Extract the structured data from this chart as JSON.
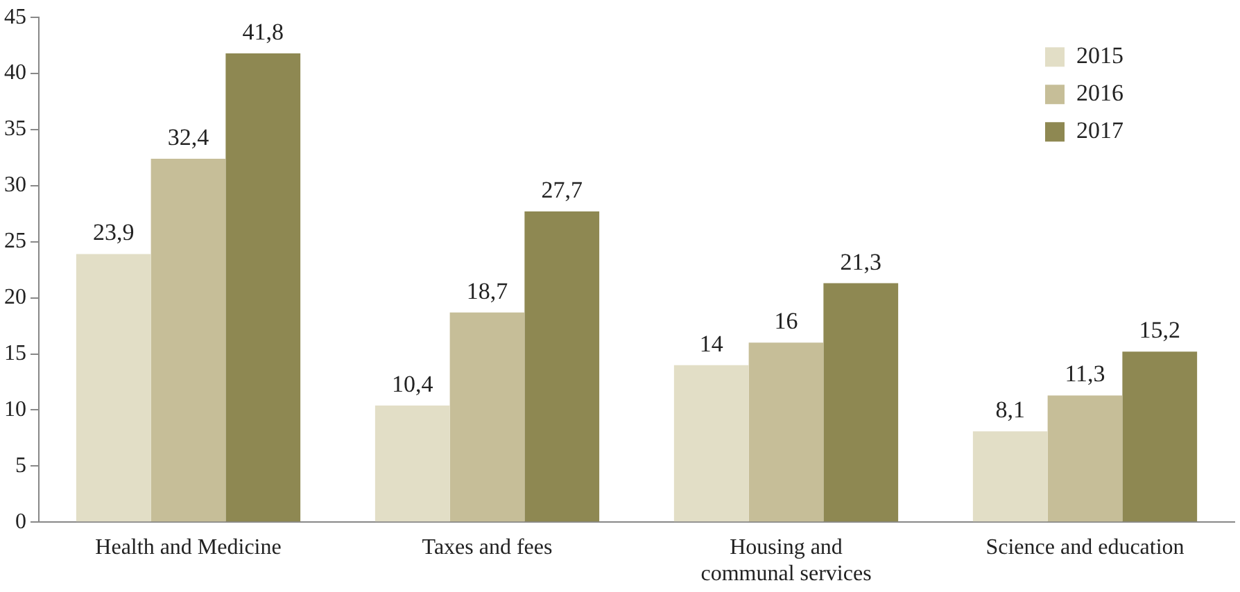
{
  "chart_data": {
    "type": "bar",
    "categories": [
      "Health and Medicine",
      "Taxes and fees",
      "Housing and communal services",
      "Science and education"
    ],
    "series": [
      {
        "name": "2015",
        "color": "#e2dec6",
        "values": [
          23.9,
          10.4,
          14,
          8.1
        ],
        "value_labels": [
          "23,9",
          "10,4",
          "14",
          "8,1"
        ]
      },
      {
        "name": "2016",
        "color": "#c6be98",
        "values": [
          32.4,
          18.7,
          16,
          11.3
        ],
        "value_labels": [
          "32,4",
          "18,7",
          "16",
          "11,3"
        ]
      },
      {
        "name": "2017",
        "color": "#8e8852",
        "values": [
          41.8,
          27.7,
          21.3,
          15.2
        ],
        "value_labels": [
          "41,8",
          "27,7",
          "21,3",
          "15,2"
        ]
      }
    ],
    "ylim": [
      0,
      45
    ],
    "yticks": [
      0,
      5,
      10,
      15,
      20,
      25,
      30,
      35,
      40,
      45
    ],
    "grid": false,
    "legend": "top right"
  }
}
